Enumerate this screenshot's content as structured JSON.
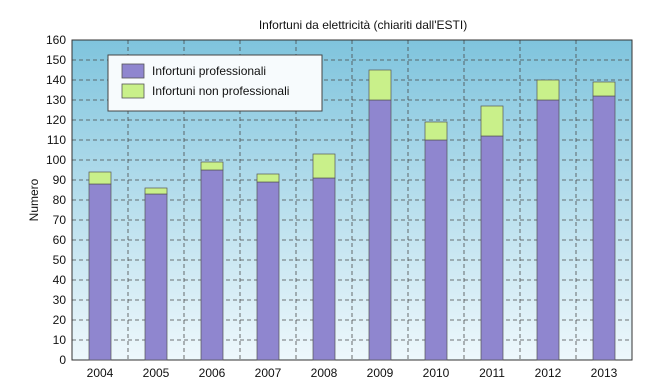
{
  "chart_data": {
    "type": "bar",
    "stacked": true,
    "title": "Infortuni da elettricità (chiariti dall'ESTI)",
    "xlabel": "",
    "ylabel": "Numero",
    "categories": [
      "2004",
      "2005",
      "2006",
      "2007",
      "2008",
      "2009",
      "2010",
      "2011",
      "2012",
      "2013"
    ],
    "series": [
      {
        "name": "Infortuni professionali",
        "color": "#8f86cf",
        "values": [
          88,
          83,
          95,
          89,
          91,
          130,
          110,
          112,
          130,
          132
        ]
      },
      {
        "name": "Infortuni non professionali",
        "color": "#c9f08a",
        "values": [
          6,
          3,
          4,
          4,
          12,
          15,
          9,
          15,
          10,
          7
        ]
      }
    ],
    "ylim": [
      0,
      160
    ],
    "yticks": [
      "0",
      "10",
      "20",
      "30",
      "40",
      "50",
      "60",
      "70",
      "80",
      "90",
      "100",
      "110",
      "120",
      "130",
      "140",
      "150",
      "160"
    ],
    "grid": true,
    "legend_position": "top-left",
    "plot_background": "gradient light-blue",
    "colors": {
      "plot_top": "#7fc4dd",
      "plot_bottom": "#eef8fc",
      "bar_edge": "#555555"
    }
  }
}
